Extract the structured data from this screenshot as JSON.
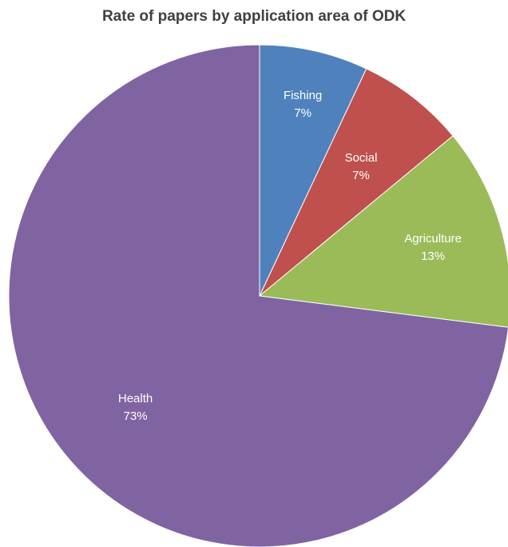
{
  "chart_data": {
    "type": "pie",
    "title": "Rate of papers by application area of ODK",
    "slices": [
      {
        "label": "Fishing",
        "value": 7,
        "value_label": "7%",
        "color": "#4f81bd"
      },
      {
        "label": "Social",
        "value": 7,
        "value_label": "7%",
        "color": "#c0504d"
      },
      {
        "label": "Agriculture",
        "value": 13,
        "value_label": "13%",
        "color": "#9bbb59"
      },
      {
        "label": "Health",
        "value": 73,
        "value_label": "73%",
        "color": "#8064a2"
      }
    ],
    "legend": "none"
  }
}
